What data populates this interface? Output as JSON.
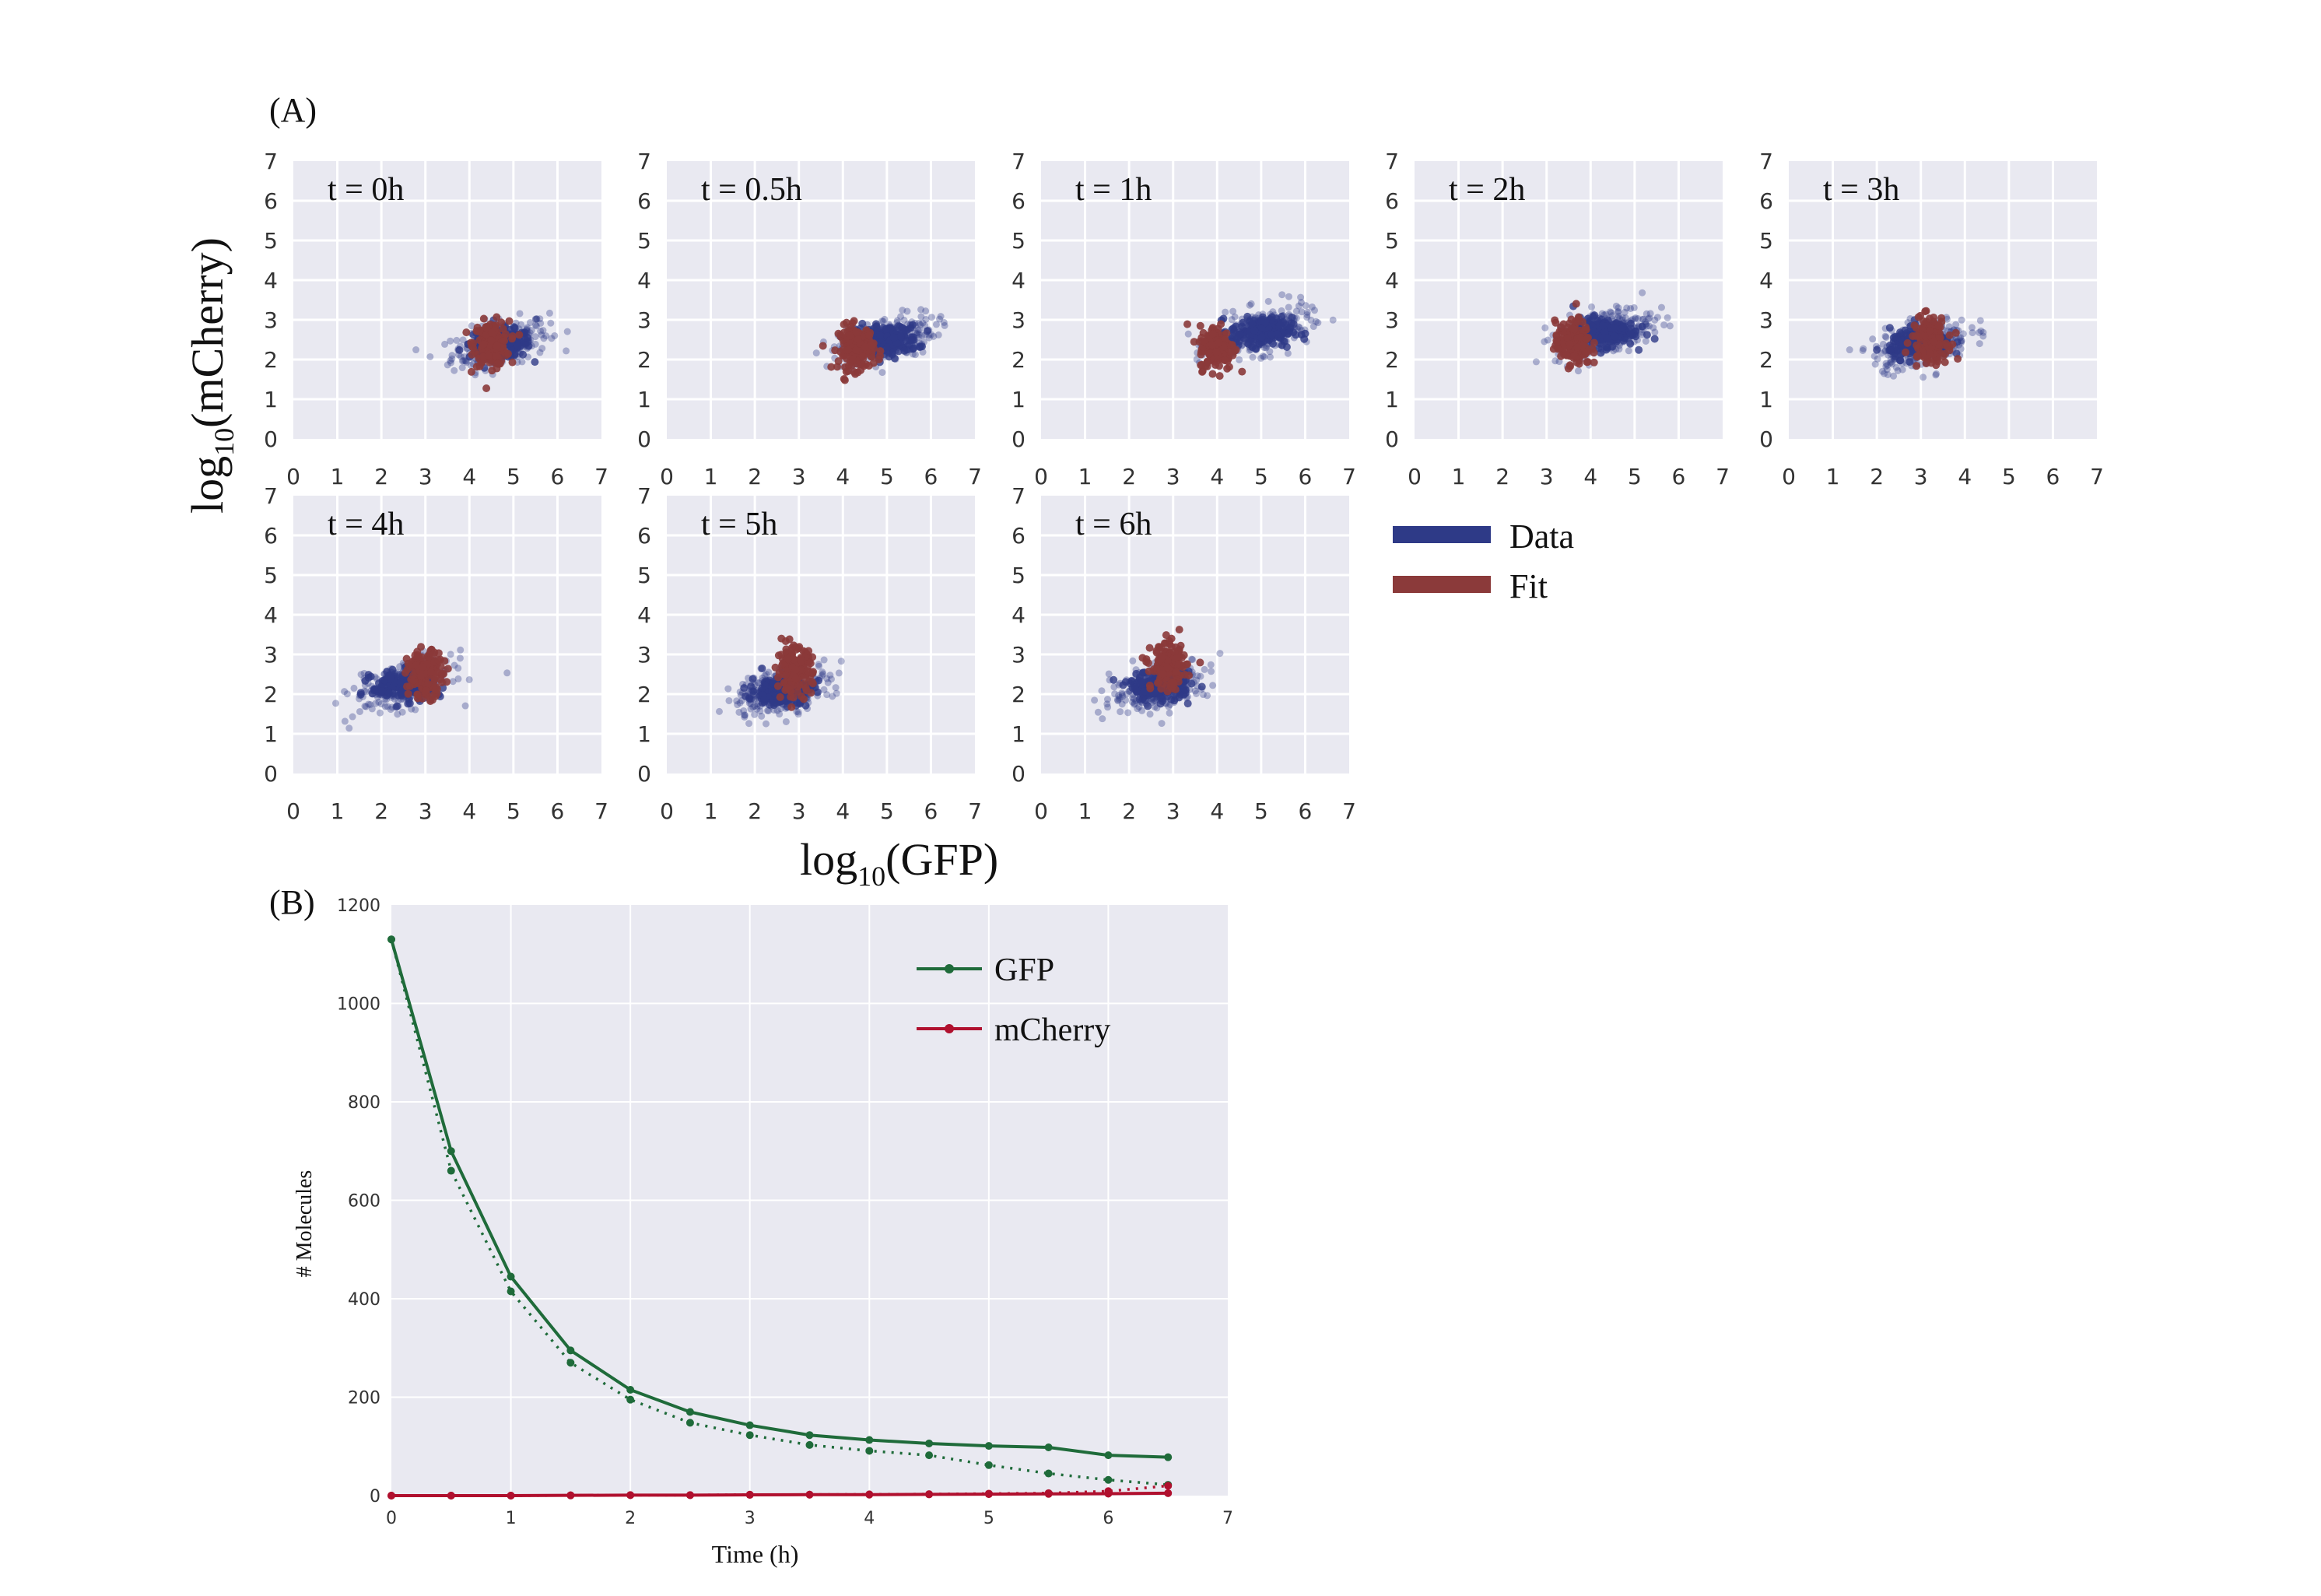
{
  "panel_a": {
    "label": "(A)",
    "ylabel_main": "log",
    "ylabel_sub": "10",
    "ylabel_rest": "(mCherry)",
    "xlabel_main": "log",
    "xlabel_sub": "10",
    "xlabel_rest": "(GFP)",
    "legend": [
      {
        "label": "Data",
        "color": "#2e3a87"
      },
      {
        "label": "Fit",
        "color": "#8b3a3a"
      }
    ]
  },
  "panel_b": {
    "label": "(B)"
  },
  "colors": {
    "plot_bg": "#e9e9f1",
    "grid": "#ffffff",
    "data": "#2e3a87",
    "fit": "#8b3a3a",
    "gfp": "#1f6b3a",
    "mcherry": "#b0102e"
  },
  "chart_data": [
    {
      "type": "scatter",
      "subplots": [
        {
          "title": "t = 0h",
          "data_center": [
            4.7,
            2.4
          ],
          "fit_center": [
            4.5,
            2.4
          ]
        },
        {
          "title": "t = 0.5h",
          "data_center": [
            5.0,
            2.5
          ],
          "fit_center": [
            4.3,
            2.3
          ]
        },
        {
          "title": "t = 1h",
          "data_center": [
            5.0,
            2.7
          ],
          "fit_center": [
            4.0,
            2.3
          ]
        },
        {
          "title": "t = 2h",
          "data_center": [
            4.3,
            2.7
          ],
          "fit_center": [
            3.6,
            2.4
          ]
        },
        {
          "title": "t = 3h",
          "data_center": [
            3.0,
            2.4
          ],
          "fit_center": [
            3.2,
            2.5
          ]
        },
        {
          "title": "t = 4h",
          "data_center": [
            2.5,
            2.2
          ],
          "fit_center": [
            3.0,
            2.5
          ]
        },
        {
          "title": "t = 5h",
          "data_center": [
            2.6,
            2.1
          ],
          "fit_center": [
            2.9,
            2.6
          ]
        },
        {
          "title": "t = 6h",
          "data_center": [
            2.7,
            2.2
          ],
          "fit_center": [
            2.9,
            2.7
          ]
        }
      ],
      "x_ticks": [
        "0",
        "1",
        "2",
        "3",
        "4",
        "5",
        "6",
        "7"
      ],
      "y_ticks": [
        "0",
        "1",
        "2",
        "3",
        "4",
        "5",
        "6",
        "7"
      ],
      "xlim": [
        0,
        7
      ],
      "ylim": [
        0,
        7
      ],
      "grid": true
    },
    {
      "type": "line",
      "xlabel": "Time (h)",
      "ylabel": "# Molecules",
      "xlim": [
        0,
        7
      ],
      "ylim": [
        0,
        1200
      ],
      "x_ticks": [
        "0",
        "1",
        "2",
        "3",
        "4",
        "5",
        "6",
        "7"
      ],
      "y_ticks": [
        "0",
        "200",
        "400",
        "600",
        "800",
        "1000",
        "1200"
      ],
      "x": [
        0,
        0.5,
        1,
        1.5,
        2,
        2.5,
        3,
        3.5,
        4,
        4.5,
        5,
        5.5,
        6,
        6.5
      ],
      "series": [
        {
          "name": "GFP",
          "style": "solid",
          "values": [
            1130,
            700,
            445,
            295,
            215,
            170,
            143,
            123,
            113,
            106,
            101,
            98,
            82,
            78
          ]
        },
        {
          "name": "",
          "style": "dotted",
          "values": [
            1130,
            660,
            415,
            270,
            195,
            148,
            123,
            103,
            91,
            82,
            62,
            45,
            32,
            22
          ]
        },
        {
          "name": "mCherry",
          "style": "solid",
          "values": [
            0,
            0,
            0,
            0.5,
            1,
            1,
            1.5,
            2,
            2,
            2.5,
            3,
            3.5,
            4,
            5
          ]
        },
        {
          "name": "",
          "style": "dotted",
          "values": [
            0,
            0,
            0,
            0.5,
            1,
            1,
            2,
            2,
            2.5,
            3,
            4,
            5,
            9,
            20
          ]
        }
      ],
      "legend": "top-right",
      "grid": true
    }
  ]
}
